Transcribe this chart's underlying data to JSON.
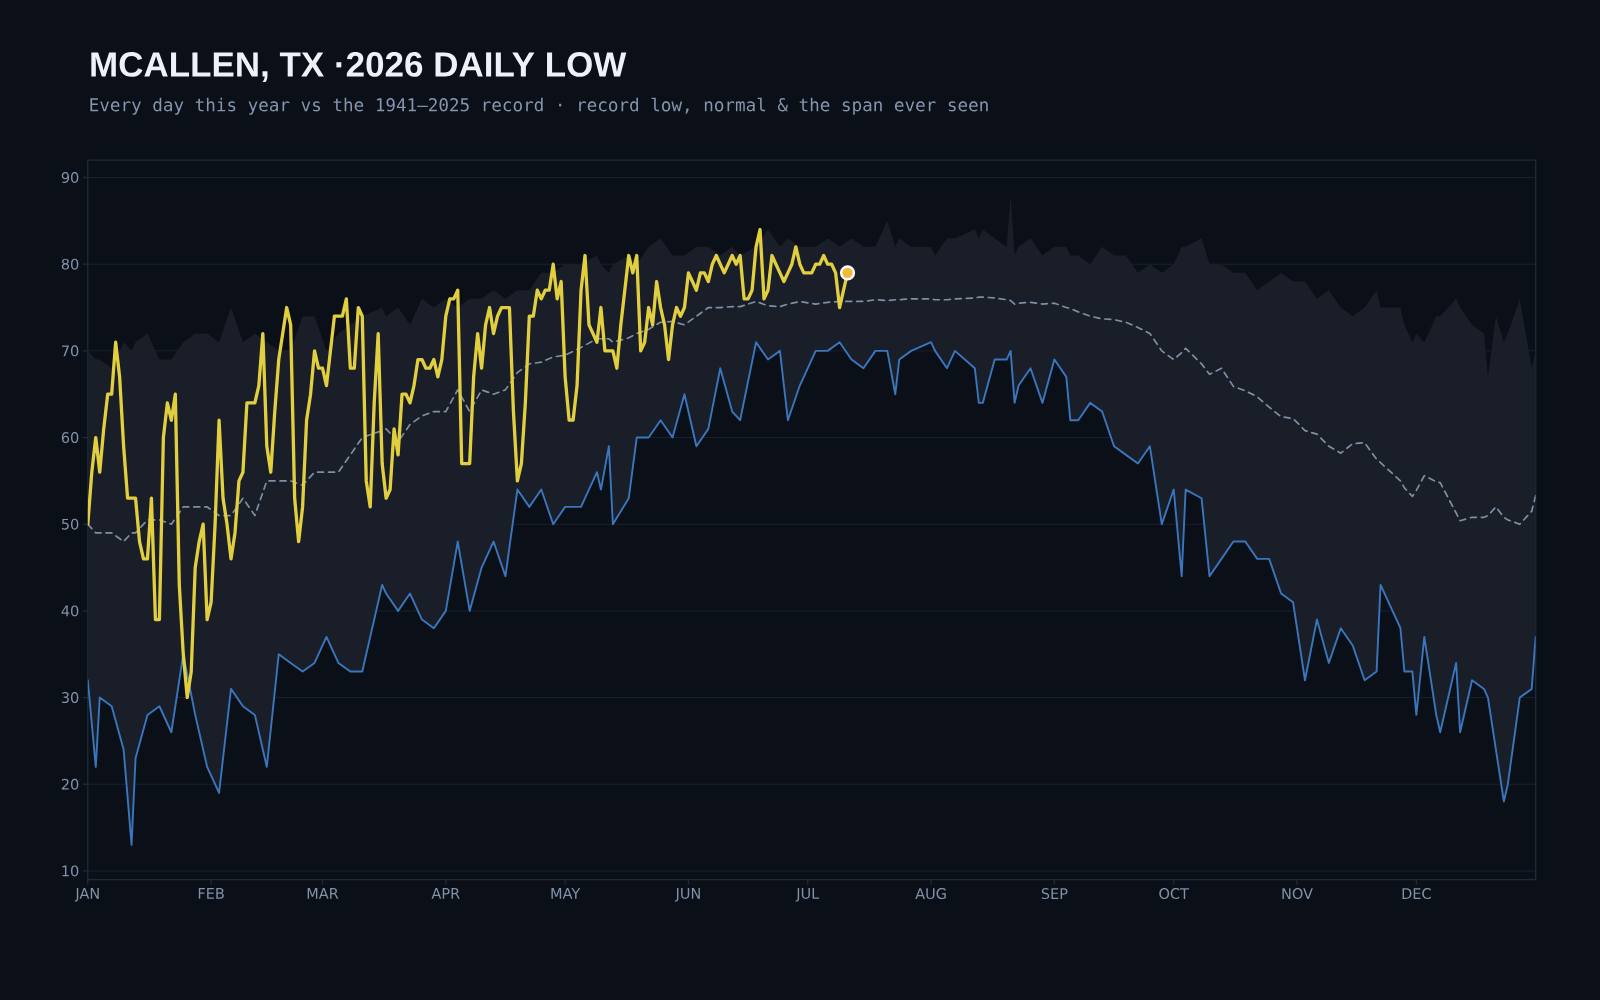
{
  "chart_data": {
    "type": "line",
    "title": "MCALLEN, TX ·2026 DAILY LOW",
    "subtitle": "Every day this year vs the 1941–2025 record · record low, normal & the span ever seen",
    "xlim": [
      "2026-01-01",
      "2026-12-31"
    ],
    "xticks": [
      {
        "value": "2026-01-01",
        "label": "JAN"
      },
      {
        "value": "2026-02-01",
        "label": "FEB"
      },
      {
        "value": "2026-03-01",
        "label": "MAR"
      },
      {
        "value": "2026-04-01",
        "label": "APR"
      },
      {
        "value": "2026-05-01",
        "label": "MAY"
      },
      {
        "value": "2026-06-01",
        "label": "JUN"
      },
      {
        "value": "2026-07-01",
        "label": "JUL"
      },
      {
        "value": "2026-08-01",
        "label": "AUG"
      },
      {
        "value": "2026-09-01",
        "label": "SEP"
      },
      {
        "value": "2026-10-01",
        "label": "OCT"
      },
      {
        "value": "2026-11-01",
        "label": "NOV"
      },
      {
        "value": "2026-12-01",
        "label": "DEC"
      }
    ],
    "ylim": [
      9,
      92
    ],
    "yticks": [
      10,
      20,
      30,
      40,
      50,
      60,
      70,
      80,
      90
    ],
    "grid": "y",
    "x": [
      "2026-01-01",
      "2026-01-03",
      "2026-01-04",
      "2026-01-07",
      "2026-01-10",
      "2026-01-12",
      "2026-01-13",
      "2026-01-16",
      "2026-01-19",
      "2026-01-22",
      "2026-01-25",
      "2026-01-28",
      "2026-01-31",
      "2026-02-03",
      "2026-02-06",
      "2026-02-09",
      "2026-02-12",
      "2026-02-15",
      "2026-02-18",
      "2026-02-21",
      "2026-02-24",
      "2026-02-27",
      "2026-03-02",
      "2026-03-05",
      "2026-03-08",
      "2026-03-11",
      "2026-03-16",
      "2026-03-17",
      "2026-03-20",
      "2026-03-23",
      "2026-03-26",
      "2026-03-29",
      "2026-04-01",
      "2026-04-04",
      "2026-04-07",
      "2026-04-10",
      "2026-04-13",
      "2026-04-16",
      "2026-04-19",
      "2026-04-22",
      "2026-04-25",
      "2026-04-28",
      "2026-05-01",
      "2026-05-05",
      "2026-05-09",
      "2026-05-10",
      "2026-05-12",
      "2026-05-13",
      "2026-05-17",
      "2026-05-19",
      "2026-05-22",
      "2026-05-25",
      "2026-05-28",
      "2026-05-31",
      "2026-06-03",
      "2026-06-06",
      "2026-06-09",
      "2026-06-12",
      "2026-06-14",
      "2026-06-18",
      "2026-06-21",
      "2026-06-24",
      "2026-06-26",
      "2026-06-29",
      "2026-07-03",
      "2026-07-06",
      "2026-07-09",
      "2026-07-12",
      "2026-07-15",
      "2026-07-18",
      "2026-07-21",
      "2026-07-23",
      "2026-07-24",
      "2026-07-27",
      "2026-08-01",
      "2026-08-02",
      "2026-08-05",
      "2026-08-07",
      "2026-08-12",
      "2026-08-13",
      "2026-08-14",
      "2026-08-17",
      "2026-08-20",
      "2026-08-21",
      "2026-08-22",
      "2026-08-23",
      "2026-08-26",
      "2026-08-29",
      "2026-09-01",
      "2026-09-04",
      "2026-09-05",
      "2026-09-07",
      "2026-09-10",
      "2026-09-13",
      "2026-09-16",
      "2026-09-19",
      "2026-09-22",
      "2026-09-25",
      "2026-09-28",
      "2026-10-01",
      "2026-10-03",
      "2026-10-04",
      "2026-10-08",
      "2026-10-10",
      "2026-10-13",
      "2026-10-16",
      "2026-10-19",
      "2026-10-22",
      "2026-10-25",
      "2026-10-28",
      "2026-10-31",
      "2026-11-03",
      "2026-11-06",
      "2026-11-09",
      "2026-11-12",
      "2026-11-15",
      "2026-11-18",
      "2026-11-21",
      "2026-11-22",
      "2026-11-27",
      "2026-11-28",
      "2026-11-30",
      "2026-12-01",
      "2026-12-03",
      "2026-12-06",
      "2026-12-07",
      "2026-12-11",
      "2026-12-12",
      "2026-12-15",
      "2026-12-18",
      "2026-12-19",
      "2026-12-21",
      "2026-12-23",
      "2026-12-24",
      "2026-12-27",
      "2026-12-30",
      "2026-12-31"
    ],
    "series": [
      {
        "color": "#7d8ea5",
        "line_style": "dashed",
        "values": [
          50,
          49,
          49,
          49,
          48,
          49,
          49,
          50.5,
          50.5,
          50,
          52,
          52,
          52,
          51,
          51,
          53,
          51,
          55,
          55,
          55,
          54.5,
          56,
          56,
          56,
          58,
          60,
          60.8,
          61,
          59.5,
          61.5,
          62.5,
          63,
          63,
          65.5,
          63,
          65.5,
          65,
          65.5,
          67.5,
          68.5,
          68.7,
          69.3,
          69.5,
          70.4,
          71.4,
          71.4,
          71.4,
          71,
          71.5,
          72,
          72.5,
          73.3,
          73.4,
          73,
          74,
          75,
          75,
          75.1,
          75.1,
          75.7,
          75.2,
          75.1,
          75.4,
          75.7,
          75.4,
          75.6,
          75.7,
          75.7,
          75.7,
          75.9,
          75.8,
          75.9,
          75.9,
          76,
          76,
          75.9,
          75.9,
          76,
          76.1,
          76.2,
          76.2,
          76.1,
          75.9,
          75.8,
          75.4,
          75.5,
          75.6,
          75.4,
          75.5,
          75,
          74.9,
          74.5,
          74,
          73.7,
          73.6,
          73.3,
          72.7,
          72,
          70,
          69,
          69.8,
          70.3,
          68.5,
          67.3,
          68,
          65.9,
          65.4,
          64.7,
          63.5,
          62.4,
          62.2,
          60.8,
          60.4,
          59,
          58.2,
          59.3,
          59.4,
          57.5,
          57.1,
          55,
          54.2,
          53.2,
          53.9,
          55.6,
          54.9,
          54.8,
          51.3,
          50.4,
          50.8,
          50.8,
          51,
          52,
          50.8,
          50.5,
          50,
          51.5,
          53.3
        ],
        "lower": [
          32,
          22,
          30,
          29,
          24,
          13,
          23,
          28,
          29,
          26,
          35,
          28,
          22,
          19,
          31,
          29,
          28,
          22,
          35,
          34,
          33,
          34,
          37,
          34,
          33,
          33,
          43,
          42,
          40,
          42,
          39,
          38,
          40,
          48,
          40,
          45,
          48,
          44,
          54,
          52,
          54,
          50,
          52,
          52,
          56,
          54,
          59,
          50,
          53,
          60,
          60,
          62,
          60,
          65,
          59,
          61,
          68,
          63,
          62,
          71,
          69,
          70,
          62,
          66,
          70,
          70,
          71,
          69,
          68,
          70,
          70,
          65,
          69,
          70,
          71,
          70,
          68,
          70,
          68,
          64,
          64,
          69,
          69,
          70,
          64,
          66,
          68,
          64,
          69,
          67,
          62,
          62,
          64,
          63,
          59,
          58,
          57,
          59,
          50,
          54,
          44,
          54,
          53,
          44,
          46,
          48,
          48,
          46,
          46,
          42,
          41,
          32,
          39,
          34,
          38,
          36,
          32,
          33,
          43,
          38,
          33,
          33,
          28,
          37,
          28,
          26,
          34,
          26,
          32,
          31,
          30,
          24,
          18,
          20,
          30,
          31,
          37
        ],
        "upper": [
          70,
          69,
          69,
          68,
          71,
          70,
          71,
          72,
          69,
          69,
          71,
          72,
          72,
          71,
          75,
          71,
          72,
          71,
          70,
          70,
          74,
          74,
          70,
          72,
          73,
          74,
          75,
          74,
          75,
          73,
          76,
          75,
          76,
          75,
          76,
          76,
          77,
          76,
          77,
          77,
          79,
          79,
          80,
          80,
          81,
          80,
          79,
          80,
          81,
          80,
          82,
          83,
          81,
          81,
          82,
          82,
          81,
          82,
          81,
          82,
          84,
          82,
          83,
          82,
          82,
          83,
          82,
          83,
          82,
          82,
          85,
          82,
          83,
          82,
          82,
          81,
          83,
          83,
          84,
          83,
          84,
          83,
          82,
          88,
          81,
          82,
          83,
          81,
          82,
          82,
          81,
          81,
          80,
          82,
          81,
          81,
          79,
          80,
          79,
          80,
          82,
          82,
          83,
          80,
          80,
          79,
          79,
          77,
          78,
          79,
          78,
          78,
          76,
          77,
          75,
          74,
          75,
          77,
          75,
          75,
          73,
          71,
          72,
          71,
          74,
          74,
          76,
          75,
          73,
          72,
          67,
          74,
          71,
          72,
          76,
          68,
          70
        ]
      },
      {
        "color": "#3a76bd",
        "values": [
          32,
          22,
          30,
          29,
          24,
          13,
          23,
          28,
          29,
          26,
          35,
          28,
          22,
          19,
          31,
          29,
          28,
          22,
          35,
          34,
          33,
          34,
          37,
          34,
          33,
          33,
          43,
          42,
          40,
          42,
          39,
          38,
          40,
          48,
          40,
          45,
          48,
          44,
          54,
          52,
          54,
          50,
          52,
          52,
          56,
          54,
          59,
          50,
          53,
          60,
          60,
          62,
          60,
          65,
          59,
          61,
          68,
          63,
          62,
          71,
          69,
          70,
          62,
          66,
          70,
          70,
          71,
          69,
          68,
          70,
          70,
          65,
          69,
          70,
          71,
          70,
          68,
          70,
          68,
          64,
          64,
          69,
          69,
          70,
          64,
          66,
          68,
          64,
          69,
          67,
          62,
          62,
          64,
          63,
          59,
          58,
          57,
          59,
          50,
          54,
          44,
          54,
          53,
          44,
          46,
          48,
          48,
          46,
          46,
          42,
          41,
          32,
          39,
          34,
          38,
          36,
          32,
          33,
          43,
          38,
          33,
          33,
          28,
          37,
          28,
          26,
          34,
          26,
          32,
          31,
          30,
          24,
          18,
          20,
          30,
          31,
          37
        ]
      },
      {
        "color": "#e2cf3f",
        "x": [
          "2026-01-01",
          "2026-01-02",
          "2026-01-03",
          "2026-01-04",
          "2026-01-05",
          "2026-01-06",
          "2026-01-07",
          "2026-01-08",
          "2026-01-09",
          "2026-01-10",
          "2026-01-11",
          "2026-01-12",
          "2026-01-13",
          "2026-01-14",
          "2026-01-15",
          "2026-01-16",
          "2026-01-17",
          "2026-01-18",
          "2026-01-19",
          "2026-01-20",
          "2026-01-21",
          "2026-01-22",
          "2026-01-23",
          "2026-01-24",
          "2026-01-25",
          "2026-01-26",
          "2026-01-27",
          "2026-01-28",
          "2026-01-29",
          "2026-01-30",
          "2026-01-31",
          "2026-02-01",
          "2026-02-02",
          "2026-02-03",
          "2026-02-04",
          "2026-02-05",
          "2026-02-06",
          "2026-02-07",
          "2026-02-08",
          "2026-02-09",
          "2026-02-10",
          "2026-02-11",
          "2026-02-12",
          "2026-02-13",
          "2026-02-14",
          "2026-02-15",
          "2026-02-16",
          "2026-02-17",
          "2026-02-18",
          "2026-02-19",
          "2026-02-20",
          "2026-02-21",
          "2026-02-22",
          "2026-02-23",
          "2026-02-24",
          "2026-02-25",
          "2026-02-26",
          "2026-02-27",
          "2026-02-28",
          "2026-03-01",
          "2026-03-02",
          "2026-03-03",
          "2026-03-04",
          "2026-03-05",
          "2026-03-06",
          "2026-03-07",
          "2026-03-08",
          "2026-03-09",
          "2026-03-10",
          "2026-03-11",
          "2026-03-12",
          "2026-03-13",
          "2026-03-14",
          "2026-03-15",
          "2026-03-16",
          "2026-03-17",
          "2026-03-18",
          "2026-03-19",
          "2026-03-20",
          "2026-03-21",
          "2026-03-22",
          "2026-03-23",
          "2026-03-24",
          "2026-03-25",
          "2026-03-26",
          "2026-03-27",
          "2026-03-28",
          "2026-03-29",
          "2026-03-30",
          "2026-03-31",
          "2026-04-01",
          "2026-04-02",
          "2026-04-03",
          "2026-04-04",
          "2026-04-05",
          "2026-04-06",
          "2026-04-07",
          "2026-04-08",
          "2026-04-09",
          "2026-04-10",
          "2026-04-11",
          "2026-04-12",
          "2026-04-13",
          "2026-04-14",
          "2026-04-15",
          "2026-04-16",
          "2026-04-17",
          "2026-04-18",
          "2026-04-19",
          "2026-04-20",
          "2026-04-21",
          "2026-04-22",
          "2026-04-23",
          "2026-04-24",
          "2026-04-25",
          "2026-04-26",
          "2026-04-27",
          "2026-04-28",
          "2026-04-29",
          "2026-04-30",
          "2026-05-01",
          "2026-05-02",
          "2026-05-03",
          "2026-05-04",
          "2026-05-05",
          "2026-05-06",
          "2026-05-07",
          "2026-05-08",
          "2026-05-09",
          "2026-05-10",
          "2026-05-11",
          "2026-05-12",
          "2026-05-13",
          "2026-05-14",
          "2026-05-15",
          "2026-05-16",
          "2026-05-17",
          "2026-05-18",
          "2026-05-19",
          "2026-05-20",
          "2026-05-21",
          "2026-05-22",
          "2026-05-23",
          "2026-05-24",
          "2026-05-25",
          "2026-05-26",
          "2026-05-27",
          "2026-05-28",
          "2026-05-29",
          "2026-05-30",
          "2026-05-31",
          "2026-06-01",
          "2026-06-02",
          "2026-06-03",
          "2026-06-04",
          "2026-06-05",
          "2026-06-06",
          "2026-06-07",
          "2026-06-08",
          "2026-06-09",
          "2026-06-10",
          "2026-06-11",
          "2026-06-12",
          "2026-06-13",
          "2026-06-14",
          "2026-06-15",
          "2026-06-16",
          "2026-06-17",
          "2026-06-18",
          "2026-06-19",
          "2026-06-20",
          "2026-06-21",
          "2026-06-22",
          "2026-06-23",
          "2026-06-24",
          "2026-06-25",
          "2026-06-26",
          "2026-06-27",
          "2026-06-28",
          "2026-06-29",
          "2026-06-30",
          "2026-07-01",
          "2026-07-02",
          "2026-07-03",
          "2026-07-04",
          "2026-07-05",
          "2026-07-06",
          "2026-07-07",
          "2026-07-08",
          "2026-07-09",
          "2026-07-10",
          "2026-07-11"
        ],
        "values": [
          50,
          56,
          60,
          56,
          61,
          65,
          65,
          71,
          67,
          59,
          53,
          53,
          53,
          48,
          46,
          46,
          53,
          39,
          39,
          60,
          64,
          62,
          65,
          43,
          35,
          30,
          33,
          45,
          48,
          50,
          39,
          41,
          50,
          62,
          53,
          50,
          46,
          49,
          55,
          56,
          64,
          64,
          64,
          66,
          72,
          59,
          56,
          63,
          69,
          72,
          75,
          73,
          53,
          48,
          52,
          62,
          65,
          70,
          68,
          68,
          66,
          70,
          74,
          74,
          74,
          76,
          68,
          68,
          75,
          74,
          55,
          52,
          64,
          72,
          57,
          53,
          54,
          61,
          58,
          65,
          65,
          64,
          66,
          69,
          69,
          68,
          68,
          69,
          67,
          69,
          74,
          76,
          76,
          77,
          57,
          57,
          57,
          67,
          72,
          68,
          73,
          75,
          72,
          74,
          75,
          75,
          75,
          63,
          55,
          57,
          64,
          74,
          74,
          77,
          76,
          77,
          77,
          80,
          76,
          78,
          67,
          62,
          62,
          66,
          77,
          81,
          73,
          72,
          71,
          75,
          70,
          70,
          70,
          68,
          73,
          77,
          81,
          79,
          81,
          70,
          71,
          75,
          73,
          78,
          75,
          73,
          69,
          73,
          75,
          74,
          75,
          79,
          78,
          77,
          79,
          79,
          78,
          80,
          81,
          80,
          79,
          80,
          81,
          80,
          81,
          76,
          76,
          77,
          82,
          84,
          76,
          77,
          81,
          80,
          79,
          78,
          79,
          80,
          82,
          80,
          79,
          79,
          79,
          80,
          80,
          81,
          80,
          80,
          79,
          75,
          77,
          79
        ]
      },
      {
        "type": "scatter",
        "color": "#f0bb3b",
        "marker": "circle",
        "x": [
          "2026-07-11"
        ],
        "values": [
          79
        ]
      }
    ]
  }
}
